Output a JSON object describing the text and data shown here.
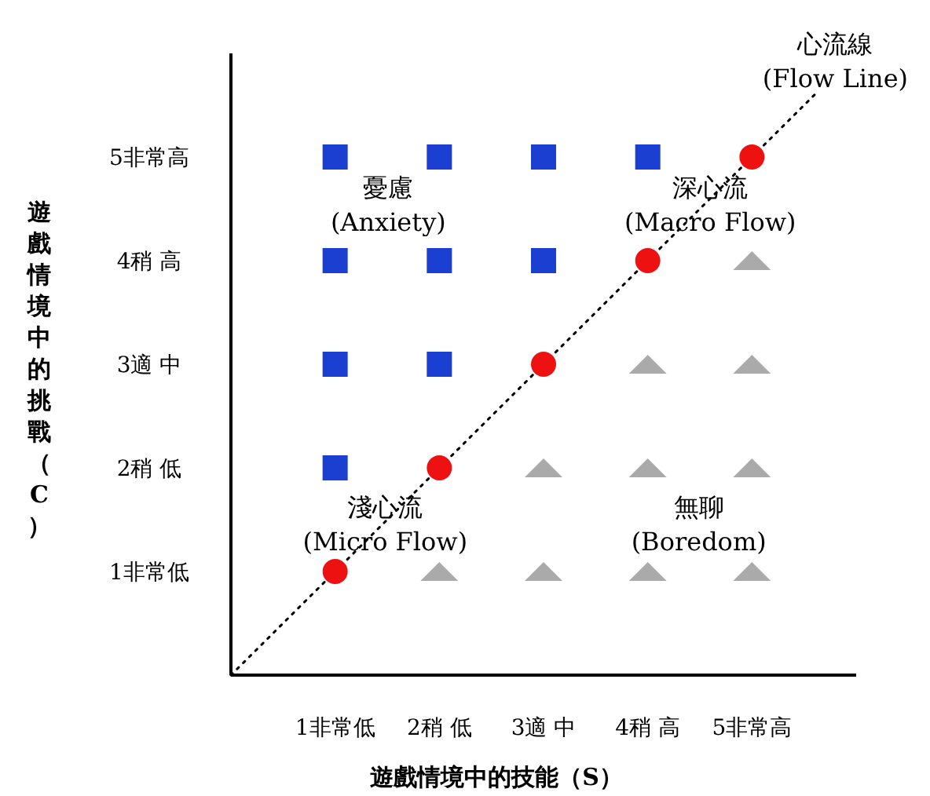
{
  "chart_data": {
    "type": "scatter",
    "xlabel": "遊戲情境中的技能（S）",
    "ylabel": "遊戲情境中的挑戰（C）",
    "xlim": [
      0,
      6
    ],
    "ylim": [
      0,
      6
    ],
    "xticks": [
      {
        "value": 1,
        "label": "1非常低"
      },
      {
        "value": 2,
        "label": "2稍 低"
      },
      {
        "value": 3,
        "label": "3適 中"
      },
      {
        "value": 4,
        "label": "4稍 高"
      },
      {
        "value": 5,
        "label": "5非常高"
      }
    ],
    "yticks": [
      {
        "value": 1,
        "label": "1非常低"
      },
      {
        "value": 2,
        "label": "2稍 低"
      },
      {
        "value": 3,
        "label": "3適 中"
      },
      {
        "value": 4,
        "label": "4稍 高"
      },
      {
        "value": 5,
        "label": "5非常高"
      }
    ],
    "grid": false,
    "series": [
      {
        "type": "line",
        "color": "#000000",
        "line_style": "dotted",
        "marker": "none",
        "x": [
          0,
          5.6
        ],
        "values": [
          0,
          5.6
        ]
      },
      {
        "type": "scatter",
        "color": "#1a3fd1",
        "marker": "square",
        "x": [
          1,
          2,
          3,
          4,
          1,
          2,
          3,
          1,
          2,
          1
        ],
        "values": [
          5,
          5,
          5,
          5,
          4,
          4,
          4,
          3,
          3,
          2
        ]
      },
      {
        "type": "scatter",
        "color": "#ee1111",
        "marker": "circle",
        "x": [
          1,
          2,
          3,
          4,
          5
        ],
        "values": [
          1,
          2,
          3,
          4,
          5
        ]
      },
      {
        "type": "scatter",
        "color": "#aaaaaa",
        "marker": "triangle",
        "x": [
          5,
          4,
          5,
          3,
          4,
          5,
          2,
          3,
          4,
          5
        ],
        "values": [
          4,
          3,
          3,
          2,
          2,
          2,
          1,
          1,
          1,
          1
        ]
      }
    ],
    "annotations": [
      "心流線\n(Flow Line)",
      "憂慮\n(Anxiety)",
      "深心流\n(Macro Flow)",
      "淺心流\n(Micro Flow)",
      "無聊\n(Boredom)"
    ]
  }
}
